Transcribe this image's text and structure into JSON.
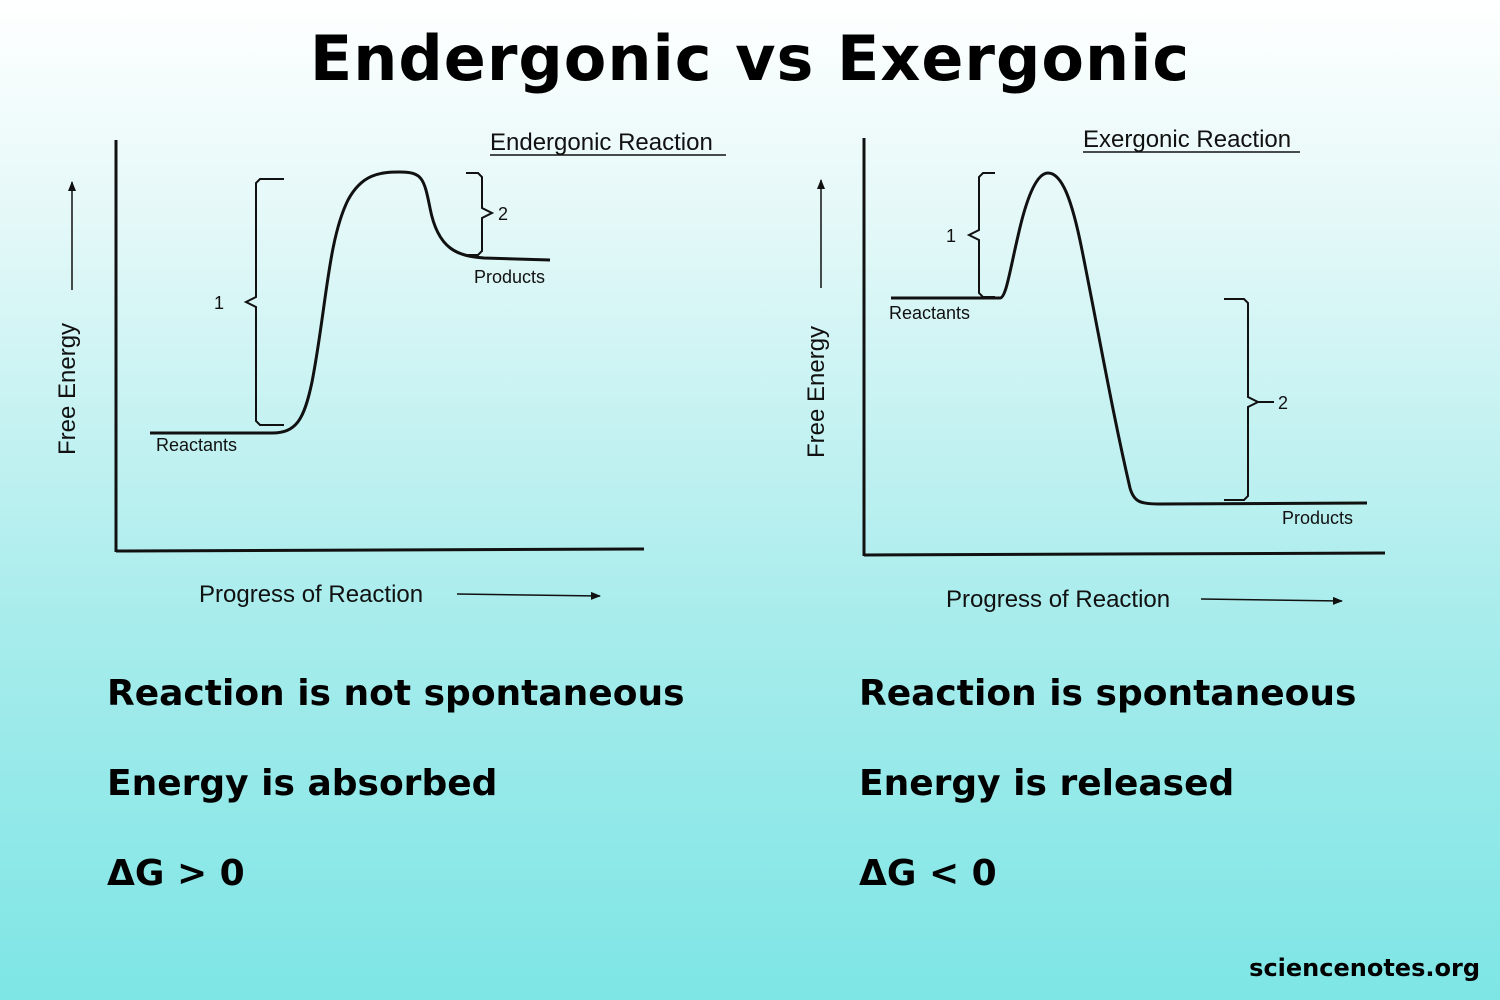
{
  "title": "Endergonic vs Exergonic",
  "endergonic": {
    "heading": "Endergonic Reaction",
    "y_axis_label": "Free Energy",
    "x_axis_label": "Progress of Reaction",
    "reactants_label": "Reactants",
    "products_label": "Products",
    "bracket_1_label": "1",
    "bracket_2_label": "2",
    "statements": [
      "Reaction is not spontaneous",
      "Energy is absorbed",
      "ΔG > 0"
    ]
  },
  "exergonic": {
    "heading": "Exergonic Reaction",
    "y_axis_label": "Free Energy",
    "x_axis_label": "Progress of Reaction",
    "reactants_label": "Reactants",
    "products_label": "Products",
    "bracket_1_label": "1",
    "bracket_2_label": "2",
    "statements": [
      "Reaction is spontaneous",
      "Energy is released",
      "ΔG < 0"
    ]
  },
  "credit": "sciencenotes.org",
  "colors": {
    "background_top": "#ffffff",
    "background_bottom": "#7ee5e5",
    "ink": "#000000"
  }
}
